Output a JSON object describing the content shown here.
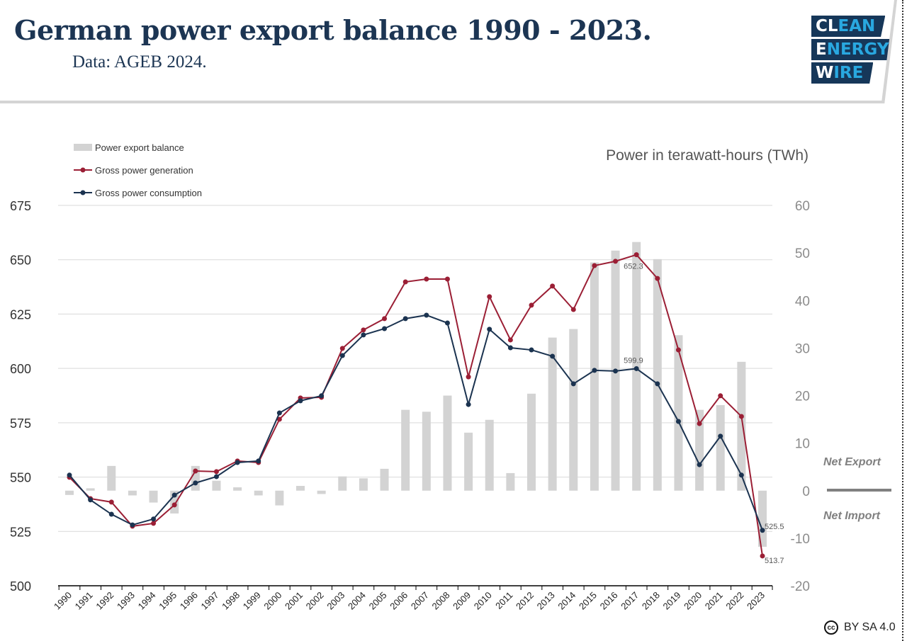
{
  "header": {
    "title": "German power export balance 1990 - 2023.",
    "subtitle": "Data: AGEB 2024.",
    "logo": {
      "line1_a": "CL",
      "line1_b": "EAN",
      "line2_a": "E",
      "line2_b": "NERGY",
      "line3_a": "W",
      "line3_b": "IRE"
    }
  },
  "footer": {
    "license_icon": "cc",
    "license": "BY SA 4.0"
  },
  "annotations": {
    "net_export": "Net Export",
    "net_import": "Net Import"
  },
  "chart_data": {
    "type": "bar+line",
    "unit_label": "Power in terawatt-hours (TWh)",
    "categories": [
      "1990",
      "1991",
      "1992",
      "1993",
      "1994",
      "1995",
      "1996",
      "1997",
      "1998",
      "1999",
      "2000",
      "2001",
      "2002",
      "2003",
      "2004",
      "2005",
      "2006",
      "2007",
      "2008",
      "2009",
      "2010",
      "2011",
      "2012",
      "2013",
      "2014",
      "2015",
      "2016",
      "2017",
      "2018",
      "2019",
      "2020",
      "2021",
      "2022",
      "2023"
    ],
    "left_axis": {
      "range": [
        500,
        675
      ],
      "ticks": [
        500,
        525,
        550,
        575,
        600,
        625,
        650,
        675
      ]
    },
    "right_axis": {
      "range": [
        -20,
        60
      ],
      "ticks": [
        -20,
        -10,
        0,
        10,
        20,
        30,
        40,
        50,
        60
      ]
    },
    "grid": true,
    "legend_position": "top-left",
    "series": [
      {
        "name": "Power export balance",
        "type": "bar",
        "axis": "right",
        "color": "#d3d3d3",
        "values": [
          -0.9,
          0.5,
          5.2,
          -1.0,
          -2.5,
          -4.8,
          5.2,
          2.1,
          0.7,
          -1.0,
          -3.1,
          1.0,
          -0.7,
          3.0,
          2.6,
          4.6,
          17.0,
          16.6,
          20.0,
          12.2,
          14.9,
          3.7,
          20.4,
          32.2,
          34.0,
          48.0,
          50.5,
          52.3,
          48.7,
          32.7,
          17.0,
          18.0,
          27.1,
          -11.8
        ]
      },
      {
        "name": "Gross power generation",
        "type": "line",
        "axis": "left",
        "color": "#9b1f35",
        "values": [
          549.9,
          540.1,
          538.5,
          527.4,
          528.7,
          537.2,
          552.8,
          552.5,
          557.4,
          556.7,
          576.6,
          586.4,
          586.7,
          609.2,
          617.7,
          622.9,
          639.8,
          641.1,
          641.1,
          596.1,
          633.0,
          613.1,
          629.1,
          637.9,
          627.1,
          647.3,
          649.3,
          652.3,
          641.4,
          608.5,
          574.6,
          587.4,
          577.9,
          513.7
        ]
      },
      {
        "name": "Gross power consumption",
        "type": "line",
        "axis": "left",
        "color": "#1b3350",
        "values": [
          550.9,
          539.5,
          532.9,
          528.0,
          530.7,
          541.7,
          547.3,
          550.2,
          556.7,
          557.4,
          579.5,
          585.1,
          587.4,
          605.9,
          615.4,
          618.3,
          622.9,
          624.5,
          620.9,
          583.4,
          618.0,
          609.5,
          608.5,
          605.6,
          592.9,
          599.1,
          598.8,
          599.9,
          592.9,
          575.6,
          555.7,
          568.8,
          550.9,
          525.5
        ]
      }
    ],
    "data_labels": [
      {
        "series": "Gross power generation",
        "year": "2017",
        "text": "652.3"
      },
      {
        "series": "Gross power consumption",
        "year": "2017",
        "text": "599.9"
      },
      {
        "series": "Gross power consumption",
        "year": "2023",
        "text": "525.5"
      },
      {
        "series": "Gross power generation",
        "year": "2023",
        "text": "513.7"
      }
    ]
  }
}
